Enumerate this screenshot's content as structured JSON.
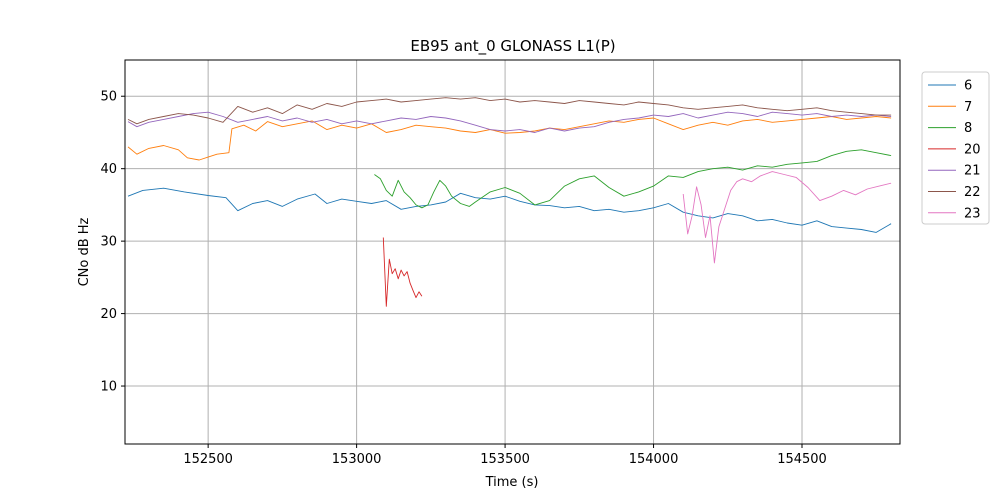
{
  "chart_data": {
    "type": "line",
    "title": "EB95 ant_0 GLONASS L1(P)",
    "xlabel": "Time (s)",
    "ylabel": "CNo dB Hz",
    "xlim": [
      152220,
      154830
    ],
    "ylim": [
      2,
      55
    ],
    "xticks": [
      152500,
      153000,
      153500,
      154000,
      154500
    ],
    "yticks": [
      10,
      20,
      30,
      40,
      50
    ],
    "grid": true,
    "legend_position": "outside-right",
    "series": [
      {
        "name": "6",
        "color": "#1f77b4",
        "x": [
          152230,
          152280,
          152350,
          152420,
          152500,
          152560,
          152600,
          152650,
          152700,
          152750,
          152800,
          152860,
          152900,
          152950,
          153000,
          153050,
          153100,
          153150,
          153200,
          153250,
          153300,
          153350,
          153400,
          153450,
          153500,
          153550,
          153600,
          153650,
          153700,
          153750,
          153800,
          153850,
          153900,
          153950,
          154000,
          154050,
          154100,
          154150,
          154200,
          154250,
          154300,
          154350,
          154400,
          154450,
          154500,
          154550,
          154600,
          154650,
          154700,
          154750,
          154800
        ],
        "y": [
          36.2,
          37.0,
          37.3,
          36.8,
          36.3,
          36.0,
          34.2,
          35.2,
          35.6,
          34.8,
          35.8,
          36.5,
          35.2,
          35.8,
          35.5,
          35.2,
          35.6,
          34.4,
          34.8,
          35.0,
          35.4,
          36.6,
          36.0,
          35.8,
          36.2,
          35.5,
          35.0,
          34.9,
          34.6,
          34.8,
          34.2,
          34.4,
          34.0,
          34.2,
          34.6,
          35.2,
          34.0,
          33.5,
          33.2,
          33.8,
          33.5,
          32.8,
          33.0,
          32.5,
          32.2,
          32.8,
          32.0,
          31.8,
          31.6,
          31.2,
          32.4
        ]
      },
      {
        "name": "7",
        "color": "#ff7f0e",
        "x": [
          152230,
          152260,
          152300,
          152350,
          152400,
          152430,
          152470,
          152500,
          152530,
          152570,
          152580,
          152620,
          152660,
          152700,
          152750,
          152800,
          152850,
          152900,
          152950,
          153000,
          153050,
          153100,
          153150,
          153200,
          153250,
          153300,
          153350,
          153400,
          153450,
          153500,
          153550,
          153600,
          153650,
          153700,
          153750,
          153800,
          153850,
          153900,
          153950,
          154000,
          154050,
          154100,
          154150,
          154200,
          154250,
          154300,
          154350,
          154400,
          154450,
          154500,
          154550,
          154600,
          154650,
          154700,
          154750,
          154800
        ],
        "y": [
          43.0,
          42.0,
          42.8,
          43.2,
          42.6,
          41.5,
          41.2,
          41.6,
          42.0,
          42.2,
          45.5,
          46.0,
          45.2,
          46.5,
          45.8,
          46.2,
          46.6,
          45.4,
          46.0,
          45.6,
          46.2,
          45.0,
          45.4,
          46.0,
          45.8,
          45.6,
          45.2,
          45.0,
          45.4,
          44.9,
          45.0,
          45.2,
          45.6,
          45.4,
          45.8,
          46.2,
          46.6,
          46.4,
          46.8,
          47.0,
          46.2,
          45.4,
          46.0,
          46.4,
          46.0,
          46.6,
          46.8,
          46.4,
          46.6,
          46.8,
          47.0,
          47.2,
          46.8,
          47.0,
          47.2,
          47.0
        ]
      },
      {
        "name": "8",
        "color": "#2ca02c",
        "x": [
          153060,
          153080,
          153100,
          153120,
          153140,
          153160,
          153180,
          153200,
          153220,
          153240,
          153260,
          153280,
          153300,
          153320,
          153350,
          153380,
          153400,
          153450,
          153500,
          153550,
          153600,
          153650,
          153700,
          153750,
          153800,
          153850,
          153900,
          153950,
          154000,
          154050,
          154100,
          154150,
          154200,
          154250,
          154300,
          154350,
          154400,
          154450,
          154500,
          154550,
          154600,
          154650,
          154700,
          154750,
          154800
        ],
        "y": [
          39.2,
          38.6,
          37.0,
          36.2,
          38.4,
          36.8,
          36.0,
          35.0,
          34.6,
          35.0,
          36.8,
          38.4,
          37.6,
          36.2,
          35.2,
          34.8,
          35.4,
          36.8,
          37.4,
          36.6,
          35.0,
          35.6,
          37.6,
          38.6,
          39.0,
          37.4,
          36.2,
          36.8,
          37.6,
          39.0,
          38.8,
          39.6,
          40.0,
          40.2,
          39.8,
          40.4,
          40.2,
          40.6,
          40.8,
          41.0,
          41.8,
          42.4,
          42.6,
          42.2,
          41.8
        ]
      },
      {
        "name": "20",
        "color": "#d62728",
        "x": [
          153090,
          153100,
          153110,
          153120,
          153130,
          153140,
          153150,
          153160,
          153170,
          153180,
          153190,
          153200,
          153210,
          153220
        ],
        "y": [
          30.5,
          21.0,
          27.5,
          25.5,
          26.2,
          24.8,
          26.0,
          25.2,
          25.8,
          24.2,
          23.2,
          22.2,
          23.0,
          22.4
        ]
      },
      {
        "name": "21",
        "color": "#9467bd",
        "x": [
          152230,
          152260,
          152300,
          152350,
          152400,
          152450,
          152500,
          152550,
          152600,
          152650,
          152700,
          152750,
          152800,
          152850,
          152900,
          152950,
          153000,
          153050,
          153100,
          153150,
          153200,
          153250,
          153300,
          153350,
          153400,
          153450,
          153500,
          153550,
          153600,
          153650,
          153700,
          153750,
          153800,
          153850,
          153900,
          153950,
          154000,
          154050,
          154100,
          154150,
          154200,
          154250,
          154300,
          154350,
          154400,
          154450,
          154500,
          154550,
          154600,
          154650,
          154700,
          154750,
          154800
        ],
        "y": [
          46.5,
          45.8,
          46.4,
          46.8,
          47.2,
          47.6,
          47.8,
          47.2,
          46.4,
          46.8,
          47.2,
          46.6,
          47.0,
          46.4,
          46.8,
          46.2,
          46.6,
          46.2,
          46.6,
          47.0,
          46.8,
          47.2,
          47.0,
          46.6,
          46.0,
          45.4,
          45.2,
          45.4,
          45.0,
          45.6,
          45.2,
          45.6,
          45.8,
          46.4,
          46.8,
          47.0,
          47.4,
          47.2,
          47.6,
          47.0,
          47.4,
          47.8,
          47.6,
          47.2,
          47.8,
          47.6,
          47.4,
          47.6,
          47.2,
          47.4,
          47.2,
          47.4,
          47.2
        ]
      },
      {
        "name": "22",
        "color": "#8c564b",
        "x": [
          152230,
          152260,
          152300,
          152350,
          152400,
          152450,
          152500,
          152550,
          152600,
          152650,
          152700,
          152750,
          152800,
          152850,
          152900,
          152950,
          153000,
          153050,
          153100,
          153150,
          153200,
          153250,
          153300,
          153350,
          153400,
          153450,
          153500,
          153550,
          153600,
          153650,
          153700,
          153750,
          153800,
          153850,
          153900,
          153950,
          154000,
          154050,
          154100,
          154150,
          154200,
          154250,
          154300,
          154350,
          154400,
          154450,
          154500,
          154550,
          154600,
          154650,
          154700,
          154750,
          154800
        ],
        "y": [
          46.8,
          46.2,
          46.8,
          47.2,
          47.6,
          47.4,
          47.0,
          46.4,
          48.6,
          47.8,
          48.4,
          47.6,
          48.8,
          48.2,
          49.0,
          48.6,
          49.2,
          49.4,
          49.6,
          49.2,
          49.4,
          49.6,
          49.8,
          49.6,
          49.8,
          49.4,
          49.6,
          49.2,
          49.4,
          49.2,
          49.0,
          49.4,
          49.2,
          49.0,
          48.8,
          49.2,
          49.0,
          48.8,
          48.4,
          48.2,
          48.4,
          48.6,
          48.8,
          48.4,
          48.2,
          48.0,
          48.2,
          48.4,
          48.0,
          47.8,
          47.6,
          47.4,
          47.4
        ]
      },
      {
        "name": "23",
        "color": "#e377c2",
        "x": [
          154100,
          154115,
          154130,
          154145,
          154160,
          154175,
          154190,
          154205,
          154220,
          154240,
          154260,
          154280,
          154300,
          154330,
          154360,
          154400,
          154440,
          154480,
          154520,
          154560,
          154600,
          154640,
          154680,
          154720,
          154760,
          154800
        ],
        "y": [
          36.5,
          31.0,
          33.5,
          37.5,
          35.0,
          30.5,
          33.5,
          27.0,
          32.0,
          34.5,
          37.0,
          38.2,
          38.6,
          38.2,
          39.0,
          39.6,
          39.2,
          38.8,
          37.4,
          35.6,
          36.2,
          37.0,
          36.4,
          37.2,
          37.6,
          38.0
        ]
      }
    ]
  }
}
